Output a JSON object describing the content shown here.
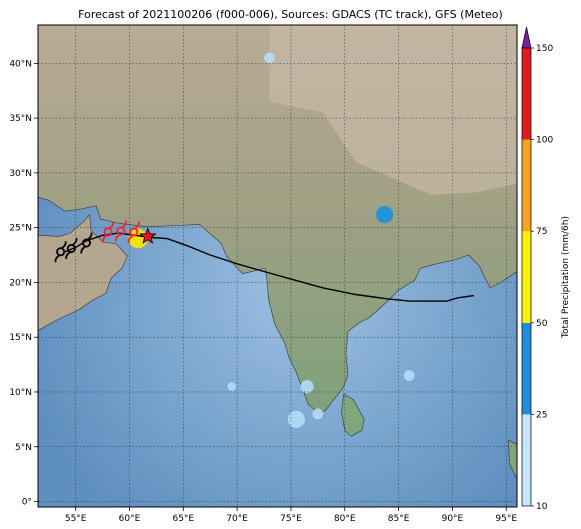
{
  "title": "Forecast of 2021100206 (f000-006), Sources: GDACS (TC track), GFS (Meteo)",
  "map": {
    "lon_range": [
      51.5,
      96
    ],
    "lat_range": [
      -0.5,
      43.5
    ],
    "lon_ticks": [
      {
        "value": 55,
        "label": "55°E"
      },
      {
        "value": 60,
        "label": "60°E"
      },
      {
        "value": 65,
        "label": "65°E"
      },
      {
        "value": 70,
        "label": "70°E"
      },
      {
        "value": 75,
        "label": "75°E"
      },
      {
        "value": 80,
        "label": "80°E"
      },
      {
        "value": 85,
        "label": "85°E"
      },
      {
        "value": 90,
        "label": "90°E"
      },
      {
        "value": 95,
        "label": "95°E"
      }
    ],
    "lat_ticks": [
      {
        "value": 0,
        "label": "0°"
      },
      {
        "value": 5,
        "label": "5°N"
      },
      {
        "value": 10,
        "label": "10°N"
      },
      {
        "value": 15,
        "label": "15°N"
      },
      {
        "value": 20,
        "label": "20°N"
      },
      {
        "value": 25,
        "label": "25°N"
      },
      {
        "value": 30,
        "label": "30°N"
      },
      {
        "value": 35,
        "label": "35°N"
      },
      {
        "value": 40,
        "label": "40°N"
      }
    ],
    "grid": true,
    "colors": {
      "ocean": "#7aa3cc",
      "land": "#a89a80",
      "track": "#000000",
      "cyclone_symbol": "#ff2020",
      "star": "#e8141c"
    }
  },
  "track": [
    [
      92.0,
      18.8
    ],
    [
      90.5,
      18.6
    ],
    [
      89.5,
      18.3
    ],
    [
      88.0,
      18.3
    ],
    [
      86.0,
      18.3
    ],
    [
      84.0,
      18.5
    ],
    [
      81.0,
      18.9
    ],
    [
      78.0,
      19.5
    ],
    [
      75.0,
      20.3
    ],
    [
      72.5,
      21.0
    ],
    [
      70.0,
      21.7
    ],
    [
      67.5,
      22.5
    ],
    [
      65.5,
      23.3
    ],
    [
      63.5,
      24.0
    ],
    [
      62.0,
      24.1
    ],
    [
      60.5,
      24.3
    ],
    [
      59.0,
      24.5
    ],
    [
      57.5,
      24.3
    ],
    [
      56.0,
      23.8
    ],
    [
      55.0,
      23.2
    ],
    [
      54.0,
      22.8
    ]
  ],
  "cyclone_symbols": [
    {
      "lon": 58.0,
      "lat": 24.6,
      "color": "#ff2020"
    },
    {
      "lon": 59.2,
      "lat": 24.7,
      "color": "#ff2020"
    },
    {
      "lon": 60.4,
      "lat": 24.6,
      "color": "#ff2020"
    },
    {
      "lon": 56.0,
      "lat": 23.6,
      "color": "#000000"
    },
    {
      "lon": 54.6,
      "lat": 23.1,
      "color": "#000000"
    },
    {
      "lon": 53.6,
      "lat": 22.8,
      "color": "#000000"
    }
  ],
  "current_position": {
    "lon": 61.7,
    "lat": 24.2
  },
  "precip_blobs": [
    {
      "lon": 60.8,
      "lat": 24.0,
      "r": 0.9,
      "level": "#ffe600"
    },
    {
      "lon": 83.7,
      "lat": 26.2,
      "r": 0.8,
      "level": "#1890e0"
    },
    {
      "lon": 75.5,
      "lat": 7.5,
      "r": 0.8,
      "level": "#b3dcfb"
    },
    {
      "lon": 77.5,
      "lat": 8.0,
      "r": 0.5,
      "level": "#b3dcfb"
    },
    {
      "lon": 76.5,
      "lat": 10.5,
      "r": 0.6,
      "level": "#b3dcfb"
    },
    {
      "lon": 86.0,
      "lat": 11.5,
      "r": 0.5,
      "level": "#b3dcfb"
    },
    {
      "lon": 73.0,
      "lat": 40.5,
      "r": 0.5,
      "level": "#b3dcfb"
    },
    {
      "lon": 69.5,
      "lat": 10.5,
      "r": 0.4,
      "level": "#b3dcfb"
    }
  ],
  "colorbar": {
    "label": "Total Precipitation (mm/6h)",
    "ticks": [
      "10",
      "25",
      "50",
      "75",
      "100",
      "150"
    ],
    "segments": [
      {
        "color": "#c6e6fb"
      },
      {
        "color": "#1b8fde"
      },
      {
        "color": "#fff200"
      },
      {
        "color": "#f7a21b"
      },
      {
        "color": "#e31a1c"
      }
    ],
    "extend_color": "#7b1fa2"
  }
}
